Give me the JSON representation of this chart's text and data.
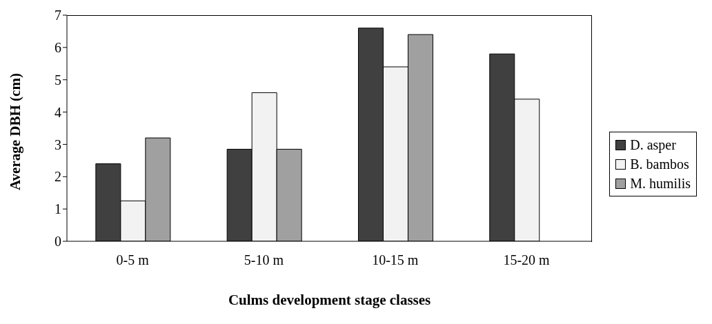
{
  "chart_data": {
    "type": "bar",
    "xlabel": "Culms development stage classes",
    "ylabel": "Average DBH (cm)",
    "categories": [
      "0-5 m",
      "5-10 m",
      "10-15 m",
      "15-20 m"
    ],
    "series": [
      {
        "name": "D. asper",
        "color": "#404040",
        "values": [
          2.4,
          2.85,
          6.6,
          5.8
        ]
      },
      {
        "name": "B. bambos",
        "color": "#f2f2f2",
        "values": [
          1.25,
          4.6,
          5.4,
          4.4
        ]
      },
      {
        "name": "M. humilis",
        "color": "#a0a0a0",
        "values": [
          3.2,
          2.85,
          6.4,
          null
        ]
      }
    ],
    "ylim": [
      0,
      7
    ],
    "yticks": [
      0,
      1,
      2,
      3,
      4,
      5,
      6,
      7
    ],
    "grid": false,
    "legend": "right"
  }
}
